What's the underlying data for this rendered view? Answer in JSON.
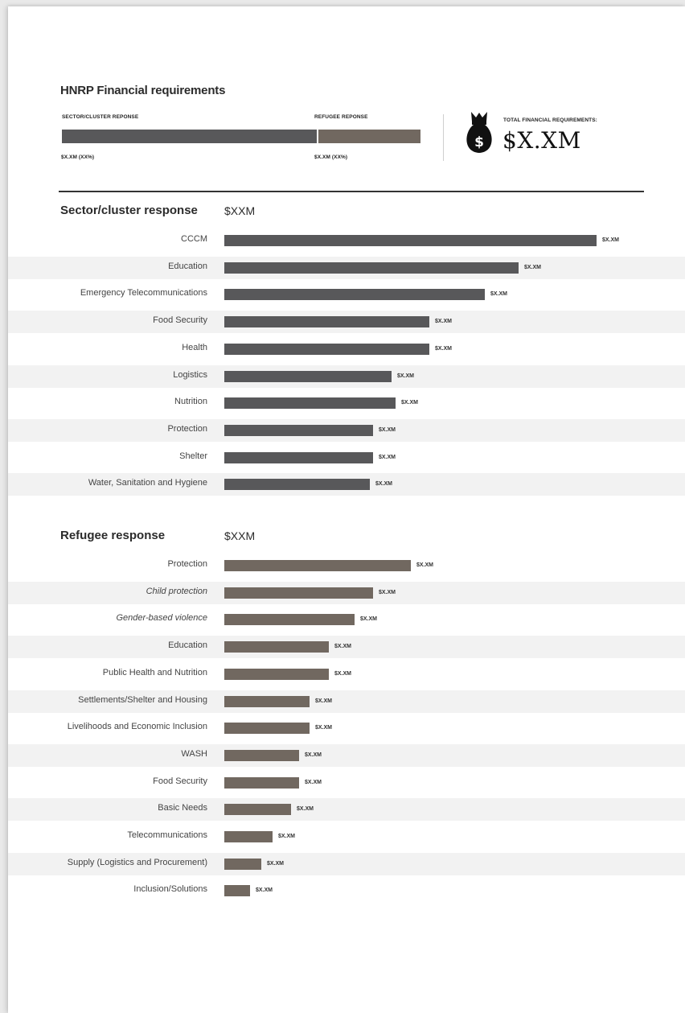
{
  "header": {
    "title": "HNRP Financial requirements",
    "sector_label": "SECTOR/CLUSTER REPONSE",
    "refugee_label": "REFUGEE REPONSE",
    "sector_value": "$X.XM (XX%)",
    "refugee_value": "$X.XM (XX%)",
    "split_share": {
      "sector": 0.71,
      "refugee": 0.29
    },
    "total_label": "TOTAL FINANCIAL REQUIREMENTS:",
    "total_value": "$X.XM",
    "icon": "money-bag-icon"
  },
  "colors": {
    "sector_bar": "#58585a",
    "refugee_bar": "#716860",
    "stripe": "#f2f2f2"
  },
  "sections": {
    "sector": {
      "title": "Sector/cluster response",
      "total": "$XXM"
    },
    "refugee": {
      "title": "Refugee response",
      "total": "$XXM"
    }
  },
  "chart_data": [
    {
      "type": "bar",
      "orientation": "horizontal",
      "title": "Sector/cluster response",
      "categories": [
        "CCCM",
        "Education",
        "Emergency Telecommunications",
        "Food Security",
        "Health",
        "Logistics",
        "Nutrition",
        "Protection",
        "Shelter",
        "Water, Sanitation and Hygiene"
      ],
      "values": [
        100,
        79,
        70,
        55,
        55,
        45,
        46,
        40,
        40,
        39
      ],
      "value_labels": [
        "$X.XM",
        "$X.XM",
        "$X.XM",
        "$X.XM",
        "$X.XM",
        "$X.XM",
        "$X.XM",
        "$X.XM",
        "$X.XM",
        "$X.XM"
      ]
    },
    {
      "type": "bar",
      "orientation": "horizontal",
      "title": "Refugee response",
      "categories": [
        "Protection",
        "Child protection",
        "Gender-based violence",
        "Education",
        "Public Health and Nutrition",
        "Settlements/Shelter and Housing",
        "Livelihoods and Economic Inclusion",
        "WASH",
        "Food Security",
        "Basic Needs",
        "Telecommunications",
        "Supply (Logistics and Procurement)",
        "Inclusion/Solutions"
      ],
      "italic": [
        false,
        true,
        true,
        false,
        false,
        false,
        false,
        false,
        false,
        false,
        false,
        false,
        false
      ],
      "values": [
        50,
        40,
        35,
        28,
        28,
        23,
        23,
        20,
        20,
        18,
        13,
        10,
        7
      ],
      "value_labels": [
        "$X.XM",
        "$X.XM",
        "$X.XM",
        "$X.XM",
        "$X.XM",
        "$X.XM",
        "$X.XM",
        "$X.XM",
        "$X.XM",
        "$X.XM",
        "$X.XM",
        "$X.XM",
        "$X.XM"
      ]
    }
  ]
}
